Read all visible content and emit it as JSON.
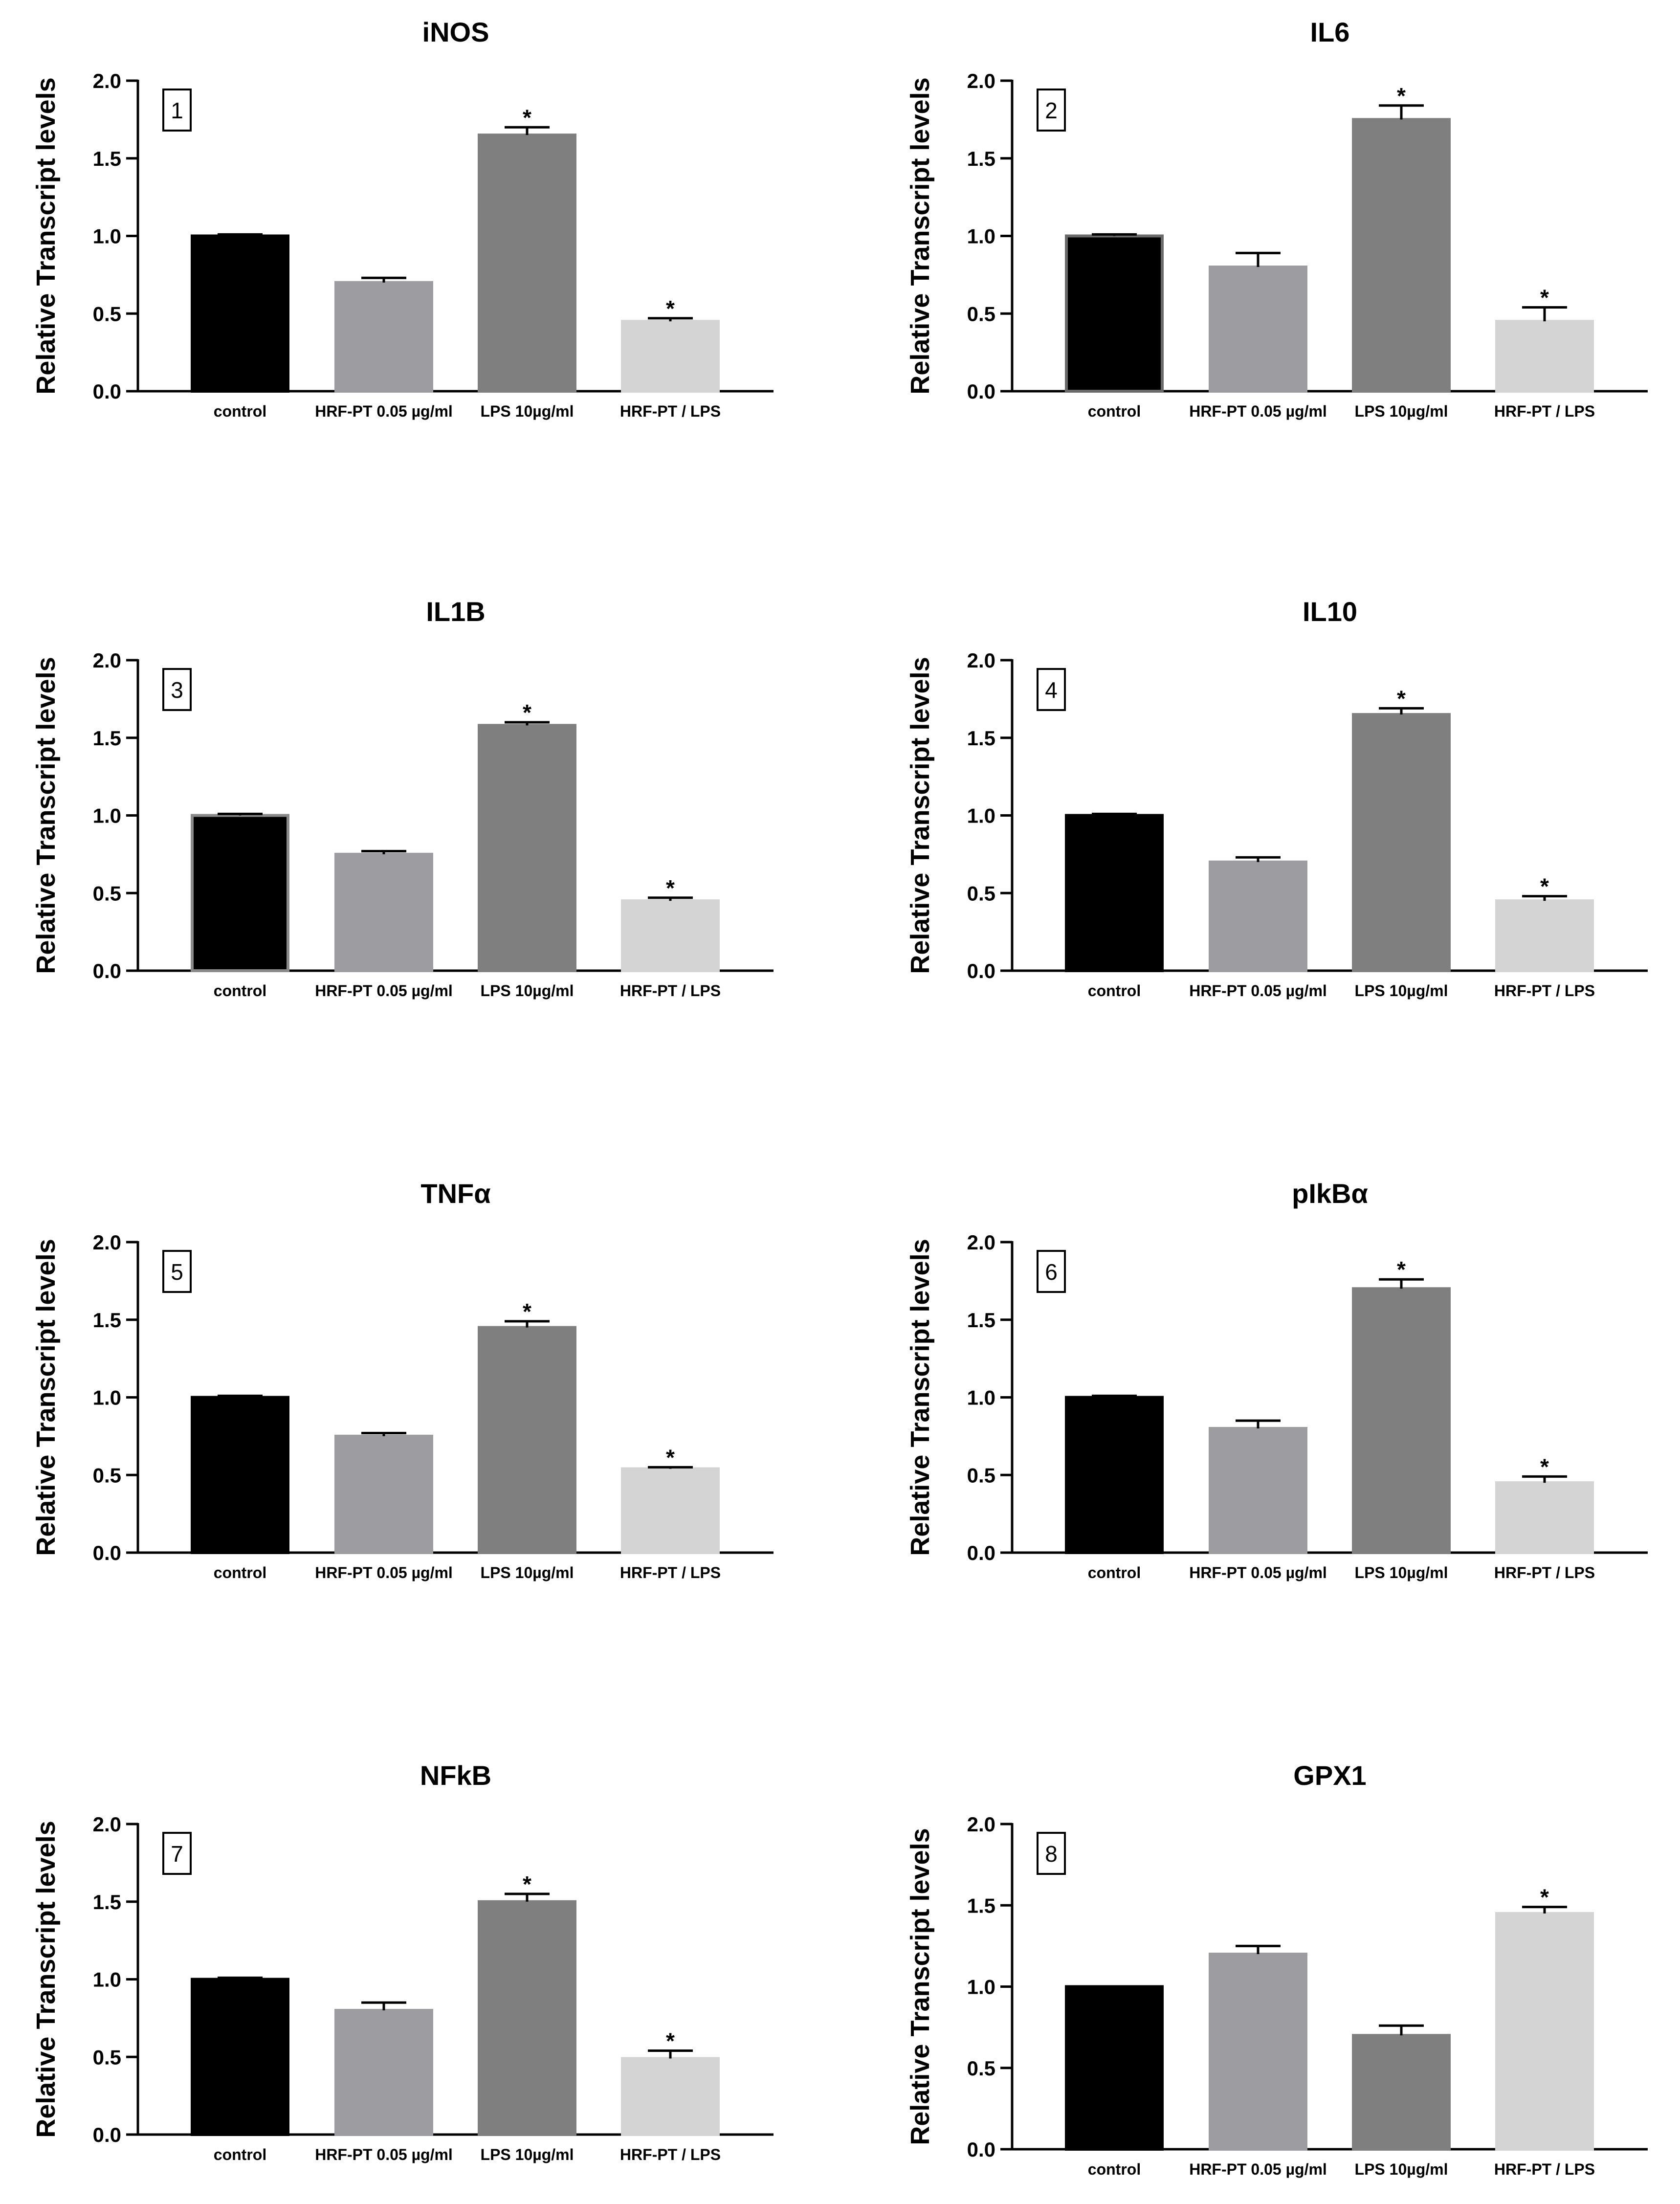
{
  "figure": {
    "ylabel": "Relative Transcript levels",
    "categories": [
      "control",
      "HRF-PT 0.05 µg/ml",
      "LPS 10µg/ml",
      "HRF-PT / LPS"
    ],
    "bar_colors": [
      "#000000",
      "#9d9da1",
      "#7f7f7f",
      "#d4d4d4"
    ],
    "bar_outline_colors": [
      "#000000",
      "#9d9da1",
      "#7f7f7f",
      "#d4d4d4"
    ],
    "yticks": [
      "0.0",
      "0.5",
      "1.0",
      "1.5",
      "2.0"
    ]
  },
  "chart_data": [
    {
      "type": "bar",
      "panel": "1",
      "title": "iNOS",
      "ylim": [
        0,
        2
      ],
      "categories": [
        "control",
        "HRF-PT 0.05 µg/ml",
        "LPS 10µg/ml",
        "HRF-PT / LPS"
      ],
      "values": [
        1.0,
        0.7,
        1.65,
        0.45
      ],
      "errors": [
        0.01,
        0.03,
        0.05,
        0.02
      ],
      "significance": [
        "",
        "",
        "*",
        "*"
      ],
      "outline": [
        "#000000",
        "#9d9da1",
        "#7f7f7f",
        "#d4d4d4"
      ]
    },
    {
      "type": "bar",
      "panel": "2",
      "title": "IL6",
      "ylim": [
        0,
        2
      ],
      "categories": [
        "control",
        "HRF-PT 0.05 µg/ml",
        "LPS 10µg/ml",
        "HRF-PT / LPS"
      ],
      "values": [
        1.0,
        0.8,
        1.75,
        0.45
      ],
      "errors": [
        0.01,
        0.09,
        0.09,
        0.09
      ],
      "significance": [
        "",
        "",
        "*",
        "*"
      ],
      "outline": [
        "#6a6a6a",
        "#9d9da1",
        "#7f7f7f",
        "#d4d4d4"
      ]
    },
    {
      "type": "bar",
      "panel": "3",
      "title": "IL1B",
      "ylim": [
        0,
        2
      ],
      "categories": [
        "control",
        "HRF-PT 0.05 µg/ml",
        "LPS 10µg/ml",
        "HRF-PT / LPS"
      ],
      "values": [
        1.0,
        0.75,
        1.58,
        0.45
      ],
      "errors": [
        0.01,
        0.02,
        0.02,
        0.02
      ],
      "significance": [
        "",
        "",
        "*",
        "*"
      ],
      "outline": [
        "#8a8a8a",
        "#9d9da1",
        "#7f7f7f",
        "#d4d4d4"
      ]
    },
    {
      "type": "bar",
      "panel": "4",
      "title": "IL10",
      "ylim": [
        0,
        2
      ],
      "categories": [
        "control",
        "HRF-PT 0.05 µg/ml",
        "LPS 10µg/ml",
        "HRF-PT / LPS"
      ],
      "values": [
        1.0,
        0.7,
        1.65,
        0.45
      ],
      "errors": [
        0.01,
        0.03,
        0.04,
        0.03
      ],
      "significance": [
        "",
        "",
        "*",
        "*"
      ],
      "outline": [
        "#000000",
        "#9d9da1",
        "#7f7f7f",
        "#d4d4d4"
      ]
    },
    {
      "type": "bar",
      "panel": "5",
      "title": "TNFα",
      "ylim": [
        0,
        2
      ],
      "categories": [
        "control",
        "HRF-PT 0.05 µg/ml",
        "LPS 10µg/ml",
        "HRF-PT / LPS"
      ],
      "values": [
        1.0,
        0.75,
        1.45,
        0.54
      ],
      "errors": [
        0.01,
        0.02,
        0.04,
        0.01
      ],
      "significance": [
        "",
        "",
        "*",
        "*"
      ],
      "outline": [
        "#000000",
        "#9d9da1",
        "#7f7f7f",
        "#d4d4d4"
      ]
    },
    {
      "type": "bar",
      "panel": "6",
      "title": "pIkBα",
      "ylim": [
        0,
        2
      ],
      "categories": [
        "control",
        "HRF-PT 0.05 µg/ml",
        "LPS 10µg/ml",
        "HRF-PT / LPS"
      ],
      "values": [
        1.0,
        0.8,
        1.7,
        0.45
      ],
      "errors": [
        0.01,
        0.05,
        0.06,
        0.04
      ],
      "significance": [
        "",
        "",
        "*",
        "*"
      ],
      "outline": [
        "#000000",
        "#9d9da1",
        "#7f7f7f",
        "#d4d4d4"
      ]
    },
    {
      "type": "bar",
      "panel": "7",
      "title": "NFkB",
      "ylim": [
        0,
        2
      ],
      "categories": [
        "control",
        "HRF-PT 0.05 µg/ml",
        "LPS 10µg/ml",
        "HRF-PT / LPS"
      ],
      "values": [
        1.0,
        0.8,
        1.5,
        0.49
      ],
      "errors": [
        0.01,
        0.05,
        0.05,
        0.05
      ],
      "significance": [
        "",
        "",
        "*",
        "*"
      ],
      "outline": [
        "#000000",
        "#9d9da1",
        "#7f7f7f",
        "#d4d4d4"
      ]
    },
    {
      "type": "bar",
      "panel": "8",
      "title": "GPX1",
      "ylim": [
        0,
        2
      ],
      "categories": [
        "control",
        "HRF-PT 0.05 µg/ml",
        "LPS 10µg/ml",
        "HRF-PT / LPS"
      ],
      "values": [
        1.0,
        1.2,
        0.7,
        1.45
      ],
      "errors": [
        0.0,
        0.05,
        0.06,
        0.04
      ],
      "significance": [
        "",
        "",
        "",
        "*"
      ],
      "outline": [
        "#000000",
        "#9d9da1",
        "#7f7f7f",
        "#d4d4d4"
      ]
    }
  ]
}
